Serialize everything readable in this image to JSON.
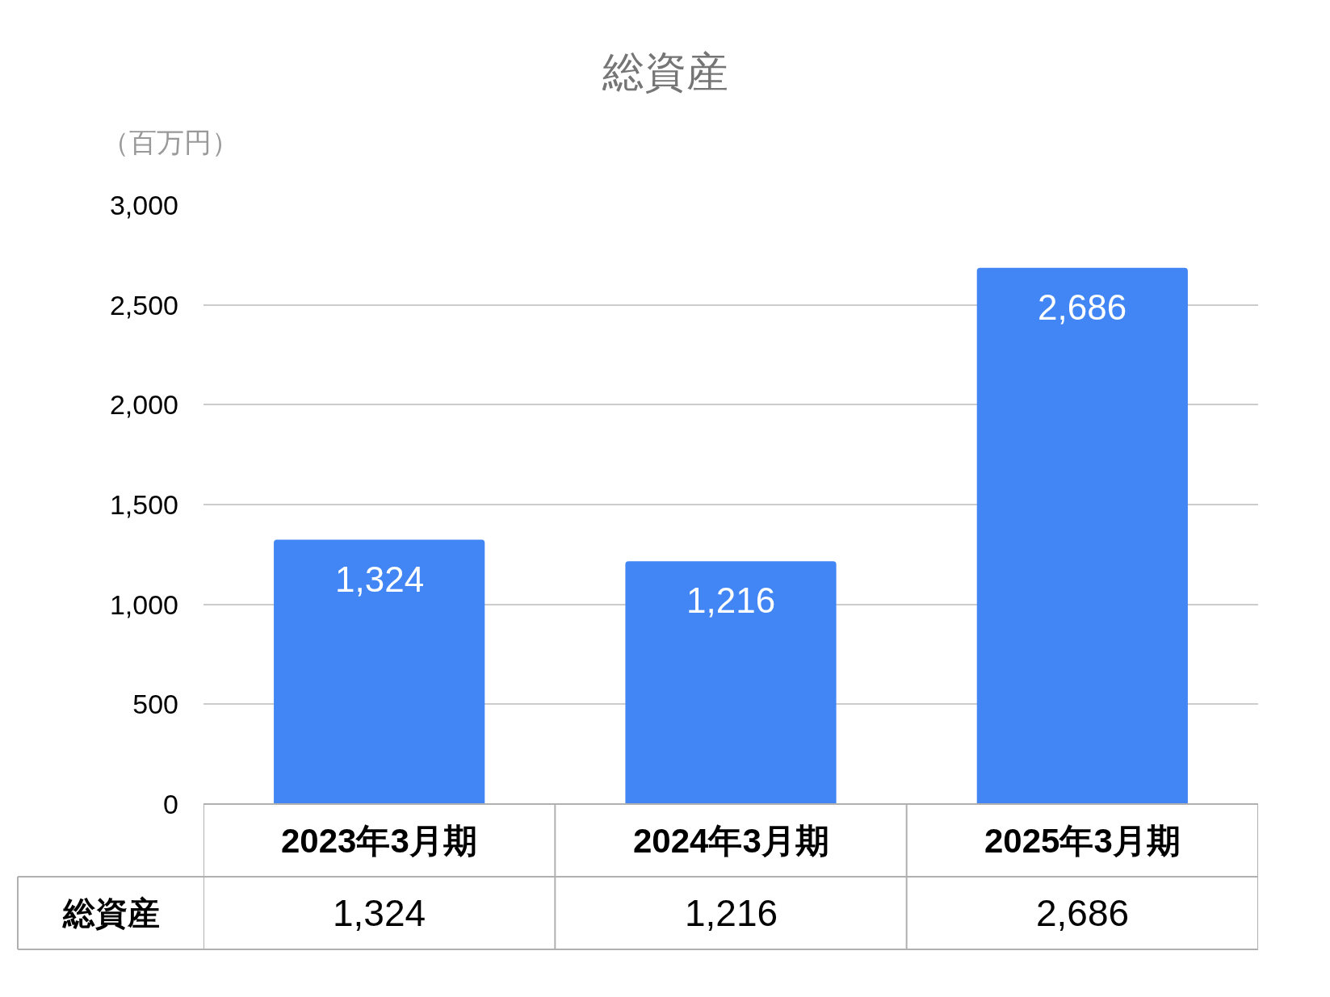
{
  "chart_data": {
    "type": "bar",
    "title": "総資産",
    "ylabel": "（百万円）",
    "categories": [
      "2023年3月期",
      "2024年3月期",
      "2025年3月期"
    ],
    "series": [
      {
        "name": "総資産",
        "color": "#4285f4",
        "values": [
          1324,
          1216,
          2686
        ],
        "value_labels": [
          "1,324",
          "1,216",
          "2,686"
        ]
      }
    ],
    "ylim": [
      0,
      3000
    ],
    "yticks": [
      0,
      500,
      {
        "value": 1000,
        "label": "1,000"
      },
      {
        "value": 1500,
        "label": "1,500"
      },
      {
        "value": 2000,
        "label": "2,000"
      },
      {
        "value": 2500,
        "label": "2,500"
      },
      {
        "value": 3000,
        "label": "3,000"
      }
    ],
    "grid": "y",
    "legend": false
  }
}
